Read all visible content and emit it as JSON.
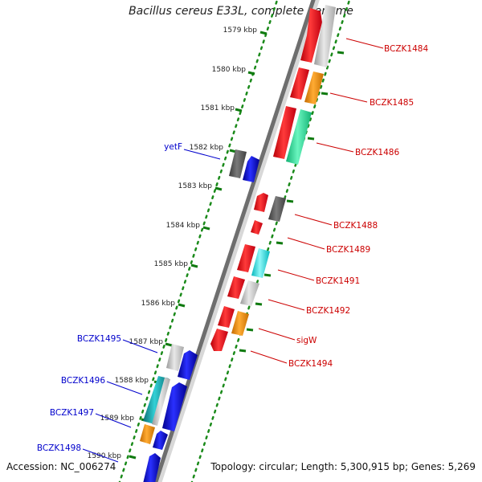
{
  "title": "Bacillus cereus E33L, complete genome",
  "footer": {
    "accession": "Accession: NC_006274",
    "topology": "Topology: circular; Length: 5,300,915 bp; Genes: 5,269"
  },
  "ticks": [
    "1579 kbp",
    "1580 kbp",
    "1581 kbp",
    "1582 kbp",
    "1583 kbp",
    "1584 kbp",
    "1585 kbp",
    "1586 kbp",
    "1587 kbp",
    "1588 kbp",
    "1589 kbp",
    "1590 kbp"
  ],
  "colors": {
    "red": "#e8121b",
    "gray_light": "#c8c8c8",
    "gray_dark": "#5a5a5a",
    "orange": "#f08c00",
    "green": "#2fe39a",
    "cyan": "#19e6ea",
    "blue": "#1017d4",
    "teal": "#1aa3a8",
    "dots": "#1a8a1a",
    "label_right": "#cc0000",
    "label_left": "#0000cc"
  },
  "right_labels": [
    "BCZK1484",
    "BCZK1485",
    "BCZK1486",
    "BCZK1488",
    "BCZK1489",
    "BCZK1491",
    "BCZK1492",
    "sigW",
    "BCZK1494"
  ],
  "left_labels": [
    "yetF",
    "BCZK1495",
    "BCZK1496",
    "BCZK1497",
    "BCZK1498"
  ]
}
